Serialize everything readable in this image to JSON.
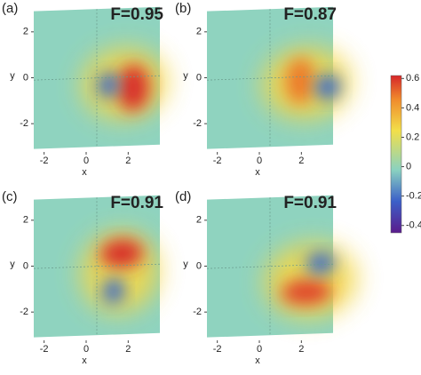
{
  "chart_data": [
    {
      "type": "heatmap",
      "label": "(a)",
      "title": "F=0.95",
      "x_label": "x",
      "y_label": "y",
      "xlim": [
        -3,
        3
      ],
      "ylim": [
        -3,
        3
      ],
      "xticks": [
        -2,
        0,
        2
      ],
      "yticks": [
        2,
        0,
        -2
      ]
    },
    {
      "type": "heatmap",
      "label": "(b)",
      "title": "F=0.87",
      "x_label": "x",
      "y_label": "y",
      "xlim": [
        -3,
        3
      ],
      "ylim": [
        -3,
        3
      ],
      "xticks": [
        -2,
        0,
        2
      ],
      "yticks": [
        2,
        0,
        -2
      ]
    },
    {
      "type": "heatmap",
      "label": "(c)",
      "title": "F=0.91",
      "x_label": "x",
      "y_label": "y",
      "xlim": [
        -3,
        3
      ],
      "ylim": [
        -3,
        3
      ],
      "xticks": [
        -2,
        0,
        2
      ],
      "yticks": [
        2,
        0,
        -2
      ]
    },
    {
      "type": "heatmap",
      "label": "(d)",
      "title": "F=0.91",
      "x_label": "x",
      "y_label": "y",
      "xlim": [
        -3,
        3
      ],
      "ylim": [
        -3,
        3
      ],
      "xticks": [
        -2,
        0,
        2
      ],
      "yticks": [
        2,
        0,
        -2
      ]
    },
    {
      "type": "colorbar",
      "ylim": [
        -0.45,
        0.62
      ],
      "yticks": [
        0.6,
        0.4,
        0.2,
        0,
        -0.2,
        -0.4
      ]
    }
  ]
}
